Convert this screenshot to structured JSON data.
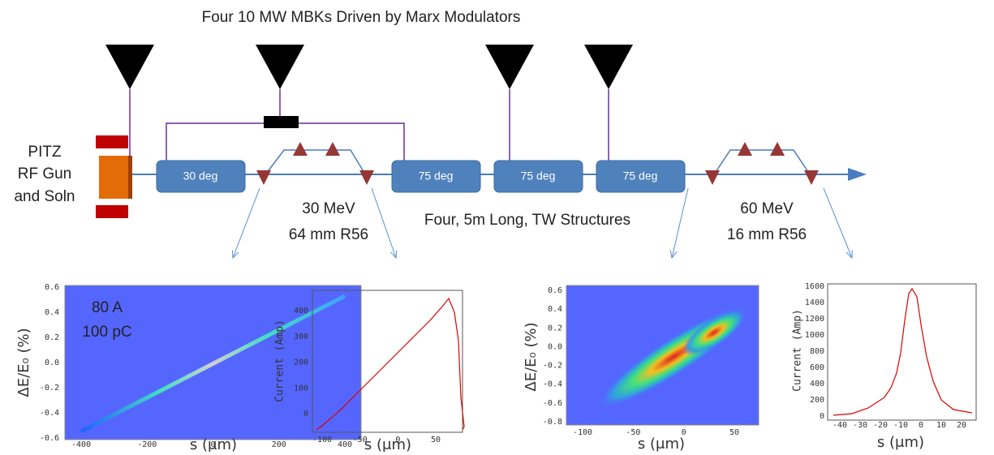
{
  "title": "Four 10 MW MBKs Driven by Marx Modulators",
  "gun_label": [
    "PITZ",
    "RF Gun",
    "and Soln"
  ],
  "structures": [
    "30 deg",
    "75 deg",
    "75 deg",
    "75 deg"
  ],
  "chicane1": [
    "30 MeV",
    "64 mm R56"
  ],
  "linac_label": "Four, 5m Long, TW Structures",
  "chicane2": [
    "60 MeV",
    "16 mm R56"
  ],
  "plots": [
    {
      "ylabel": "ΔE/E₀ (%)",
      "xlabel": "s (μm)",
      "annotation": [
        "80 A",
        "100 pC"
      ],
      "yticks": [
        "0.6",
        "0.4",
        "0.2",
        "0.0",
        "-0.2",
        "-0.4",
        "-0.6"
      ],
      "xticks": [
        "-400",
        "-200",
        "0",
        "200",
        "400"
      ]
    },
    {
      "ylabel": "Current (Amp)",
      "xlabel": "s (μm)",
      "yticks": [
        "400",
        "300",
        "200",
        "100",
        "0"
      ],
      "xticks": [
        "-100",
        "-50",
        "0",
        "50"
      ]
    },
    {
      "ylabel": "ΔE/E₀ (%)",
      "xlabel": "s (μm)",
      "yticks": [
        "0.6",
        "0.4",
        "0.2",
        "0.0",
        "-0.2",
        "-0.4",
        "-0.6",
        "-0.8"
      ],
      "xticks": [
        "-100",
        "-50",
        "0",
        "50"
      ]
    },
    {
      "ylabel": "Current (Amp)",
      "xlabel": "s (μm)",
      "yticks": [
        "1600",
        "1400",
        "1200",
        "1000",
        "800",
        "600",
        "400",
        "200",
        "0"
      ],
      "xticks": [
        "-40",
        "-30",
        "-20",
        "-10",
        "0",
        "10",
        "20"
      ]
    }
  ]
}
